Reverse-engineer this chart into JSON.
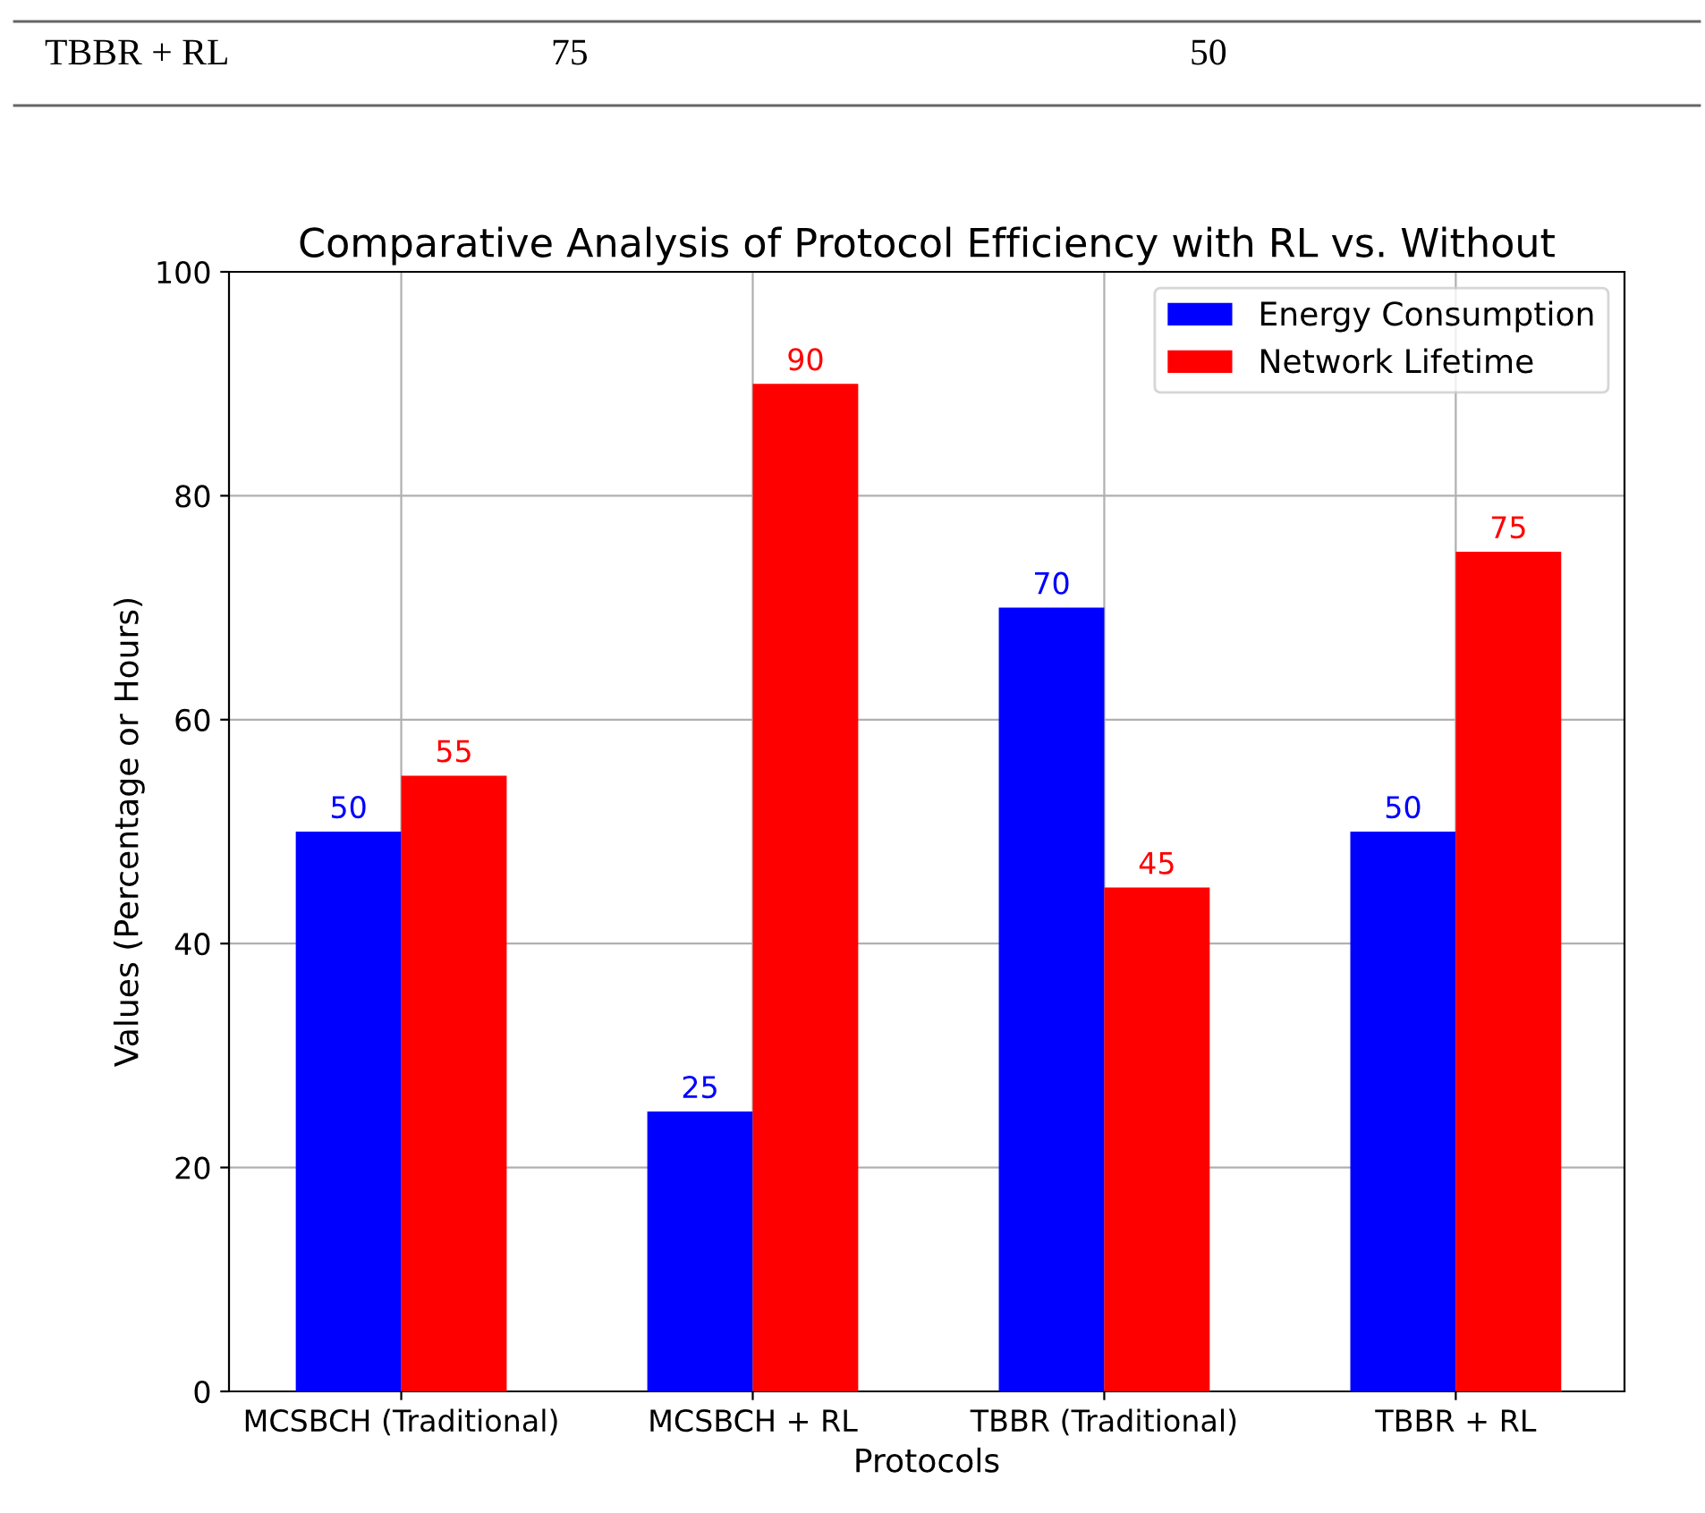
{
  "chart_data": {
    "type": "bar",
    "title": "Comparative Analysis of Protocol Efficiency with RL vs. Without",
    "xlabel": "Protocols",
    "ylabel": "Values (Percentage or Hours)",
    "categories": [
      "MCSBCH (Traditional)",
      "MCSBCH + RL",
      "TBBR (Traditional)",
      "TBBR + RL"
    ],
    "series": [
      {
        "name": "Energy Consumption",
        "color": "#0000ff",
        "values": [
          50,
          25,
          70,
          50
        ]
      },
      {
        "name": "Network Lifetime",
        "color": "#ff0000",
        "values": [
          55,
          90,
          45,
          75
        ]
      }
    ],
    "ylim": [
      0,
      100
    ],
    "yticks": [
      0,
      20,
      40,
      60,
      80,
      100
    ],
    "grid": true,
    "legend": "top right",
    "data_labels": true,
    "annotations": [
      "TBBR + RL",
      "75",
      "50"
    ]
  }
}
